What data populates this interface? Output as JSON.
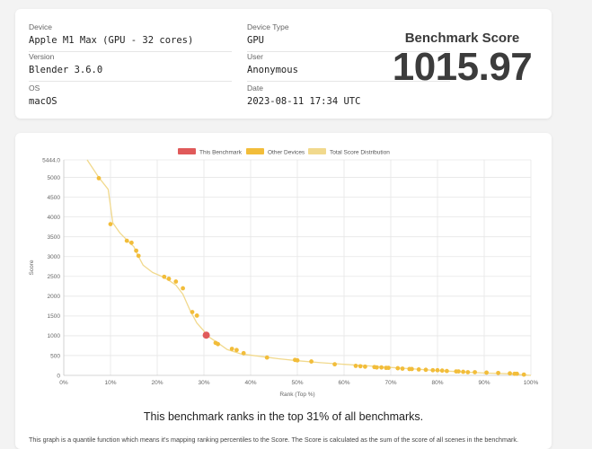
{
  "info": {
    "device_label": "Device",
    "device_value": "Apple M1 Max (GPU - 32 cores)",
    "version_label": "Version",
    "version_value": "Blender 3.6.0",
    "os_label": "OS",
    "os_value": "macOS",
    "device_type_label": "Device Type",
    "device_type_value": "GPU",
    "user_label": "User",
    "user_value": "Anonymous",
    "date_label": "Date",
    "date_value": "2023-08-11 17:34 UTC"
  },
  "score": {
    "label": "Benchmark Score",
    "value": "1015.97"
  },
  "rank_text": "This benchmark ranks in the top 31% of all benchmarks.",
  "explain_text": "This graph is a quantile function which means it's mapping ranking percentiles to the Score. The Score is calculated as the sum of the score of all scenes in the benchmark.",
  "chart_data": {
    "type": "line",
    "xlabel": "Rank (Top %)",
    "ylabel": "Score",
    "x_ticks": [
      "0%",
      "10%",
      "20%",
      "30%",
      "40%",
      "50%",
      "60%",
      "70%",
      "80%",
      "90%",
      "100%"
    ],
    "y_ticks": [
      "0",
      "500",
      "1000",
      "1500",
      "2000",
      "2500",
      "3000",
      "3500",
      "4000",
      "4500",
      "5000",
      "5444.0"
    ],
    "xlim": [
      0,
      100
    ],
    "ylim": [
      0,
      5444
    ],
    "grid": true,
    "legend_position": "top-center",
    "legend": [
      {
        "name": "This Benchmark",
        "color": "#e05a5a"
      },
      {
        "name": "Other Devices",
        "color": "#f2bd3a"
      },
      {
        "name": "Total Score Distribution",
        "color": "#f1d98d"
      }
    ],
    "distribution": {
      "name": "Total Score Distribution",
      "x": [
        5,
        7.5,
        9.5,
        10.5,
        12,
        13.5,
        15,
        16,
        17,
        19,
        21,
        22.5,
        24,
        25.5,
        27,
        28.5,
        30,
        30.5,
        33,
        35,
        38,
        42,
        46,
        50,
        55,
        60,
        65,
        70,
        75,
        80,
        85,
        90,
        95,
        100
      ],
      "y": [
        5444,
        5000,
        4700,
        3850,
        3600,
        3420,
        3250,
        3000,
        2780,
        2600,
        2500,
        2400,
        2280,
        2050,
        1650,
        1320,
        1120,
        1016,
        820,
        650,
        540,
        480,
        420,
        370,
        320,
        280,
        240,
        200,
        160,
        120,
        90,
        60,
        40,
        0
      ]
    },
    "this_benchmark": {
      "name": "This Benchmark",
      "x": 30.5,
      "y": 1016
    },
    "other_devices": {
      "name": "Other Devices",
      "x": [
        7.5,
        10,
        13.5,
        14.5,
        15.5,
        16,
        21.5,
        22.5,
        24,
        25.5,
        27.5,
        28.5,
        32.5,
        33,
        36,
        37,
        38.5,
        43.5,
        49.5,
        50,
        53,
        58,
        62.5,
        63.5,
        64.5,
        66.5,
        67,
        68,
        69,
        69.5,
        71.5,
        72.5,
        74,
        74.5,
        76,
        77.5,
        79,
        80,
        81,
        82,
        84,
        84.5,
        85.5,
        86.5,
        88,
        90.5,
        93,
        95.5,
        96.5,
        97,
        98.5
      ],
      "y": [
        4980,
        3820,
        3400,
        3350,
        3150,
        3020,
        2490,
        2440,
        2370,
        2200,
        1600,
        1510,
        820,
        790,
        670,
        640,
        560,
        450,
        390,
        380,
        350,
        280,
        240,
        230,
        220,
        210,
        200,
        200,
        190,
        190,
        180,
        170,
        160,
        160,
        150,
        140,
        130,
        130,
        120,
        110,
        100,
        100,
        90,
        80,
        80,
        70,
        60,
        50,
        40,
        40,
        20
      ]
    }
  }
}
